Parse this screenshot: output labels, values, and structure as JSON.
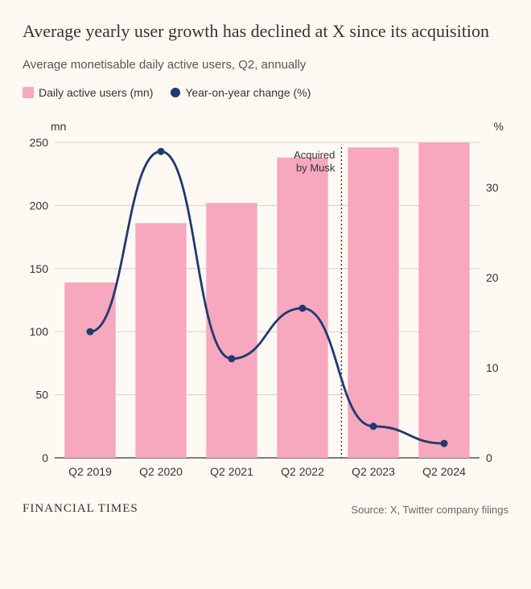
{
  "title": "Average yearly user growth has declined at X since its acquisition",
  "subtitle": "Average monetisable daily active users, Q2, annually",
  "legend": {
    "bar_label": "Daily active users (mn)",
    "line_label": "Year-on-year change (%)"
  },
  "axis_left_label": "mn",
  "axis_right_label": "%",
  "brand": "FINANCIAL TIMES",
  "source": "Source: X, Twitter company filings",
  "chart": {
    "type": "bar+line",
    "background_color": "#fff9f4",
    "categories": [
      "Q2 2019",
      "Q2 2020",
      "Q2 2021",
      "Q2 2022",
      "Q2 2023",
      "Q2 2024"
    ],
    "bar_series": {
      "values": [
        139,
        186,
        202,
        238,
        246,
        250
      ],
      "color": "#f7a7be"
    },
    "line_series": {
      "values": [
        14,
        34,
        11,
        16.6,
        3.5,
        1.6
      ],
      "color": "#1f3a6e",
      "marker_radius": 4.5,
      "line_width": 2.8
    },
    "y_left": {
      "min": 0,
      "max": 250,
      "tick_step": 50
    },
    "y_right": {
      "min": 0,
      "max": 35,
      "ticks": [
        0,
        10,
        20,
        30
      ]
    },
    "gridline_color": "#d9cfc6",
    "baseline_color": "#333333",
    "annotation": {
      "text_line1": "Acquired",
      "text_line2": "by Musk",
      "x_position": 3.55,
      "line_style": "dotted",
      "line_color": "#333333"
    },
    "bar_width_ratio": 0.72,
    "label_fontsize": 14
  }
}
